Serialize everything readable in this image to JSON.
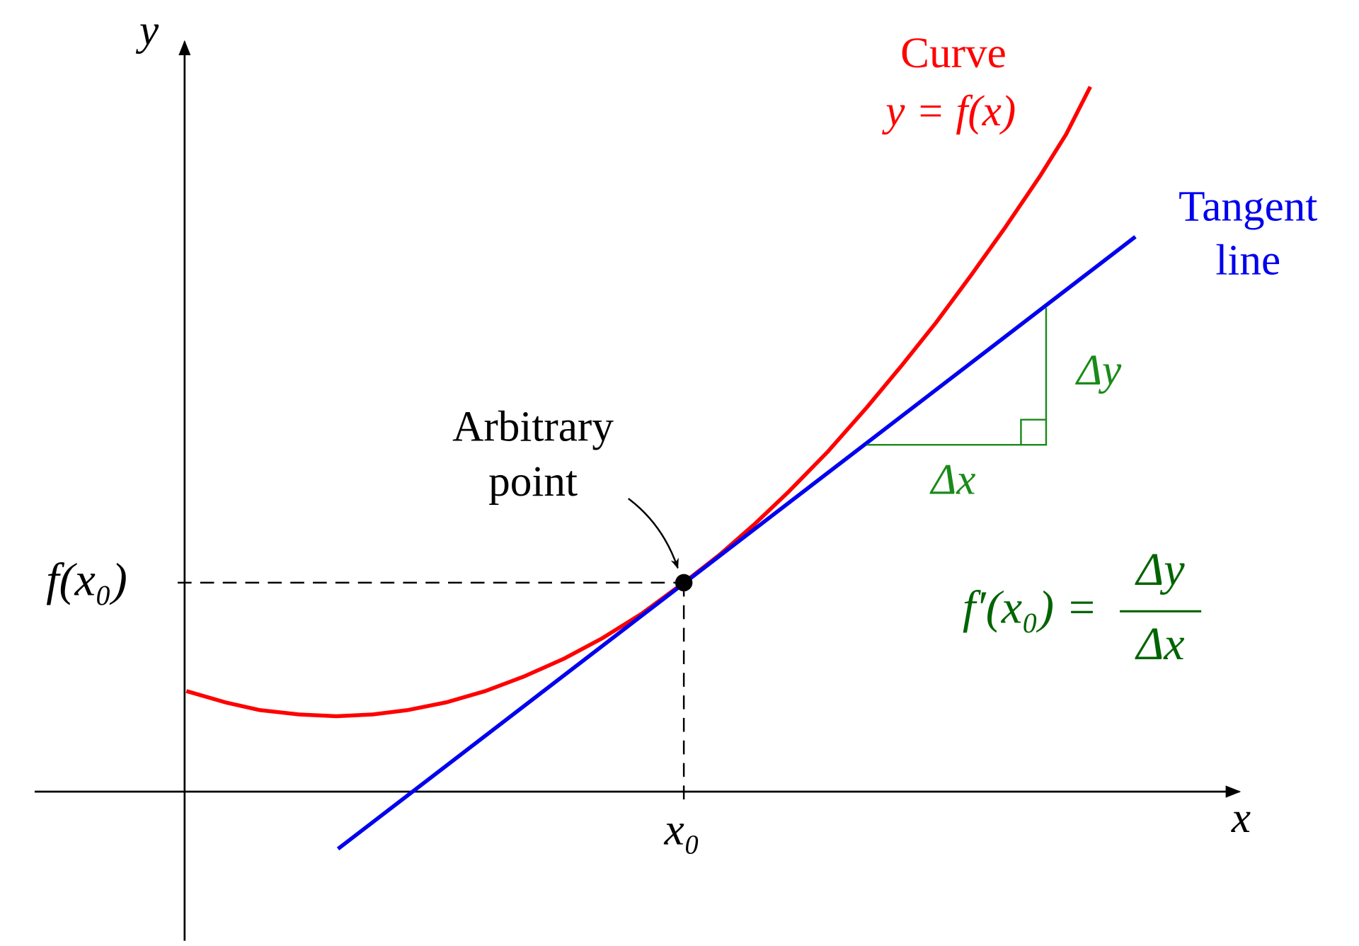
{
  "axes": {
    "x_label": "x",
    "y_label": "y"
  },
  "curve": {
    "label": "Curve",
    "equation": "y = f(x)"
  },
  "tangent": {
    "label_lines": [
      "Tangent",
      "line"
    ]
  },
  "triangle": {
    "dy": "Δy",
    "dx": "Δx"
  },
  "point": {
    "label_lines": [
      "Arbitrary",
      "point"
    ],
    "x_label": "x₀",
    "y_label": "f(x₀)"
  },
  "formula": {
    "lhs": "f′(x₀) =",
    "numerator": "Δy",
    "denominator": "Δx"
  }
}
